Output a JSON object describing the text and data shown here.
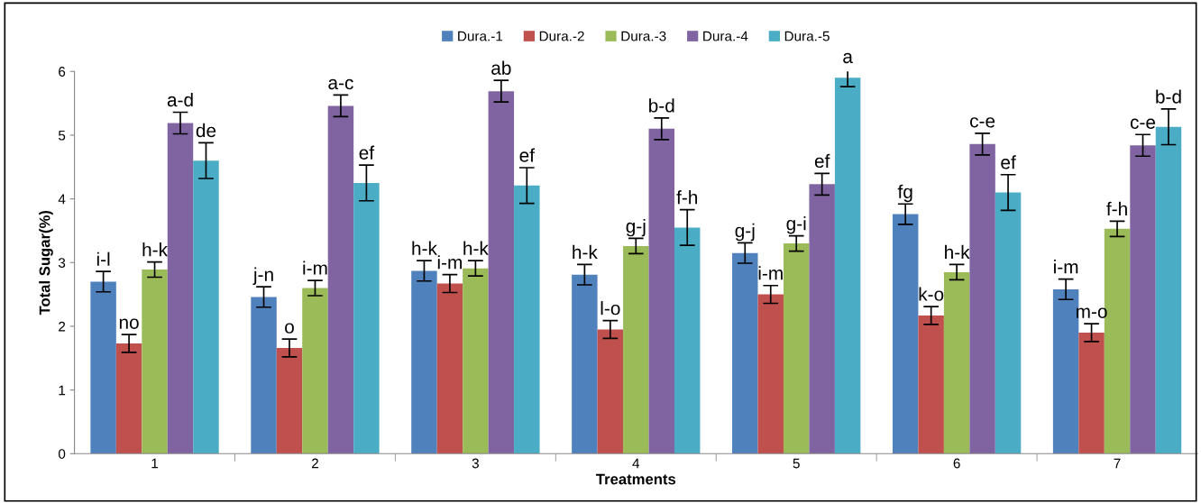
{
  "chart_data": {
    "type": "bar",
    "xlabel": "Treatments",
    "ylabel": "Total Sugar(%)",
    "categories": [
      "1",
      "2",
      "3",
      "4",
      "5",
      "6",
      "7"
    ],
    "ylim": [
      0,
      6
    ],
    "yticks": [
      0,
      1,
      2,
      3,
      4,
      5,
      6
    ],
    "grid": false,
    "legend": "top",
    "series": [
      {
        "name": "Dura.-1",
        "color": "#4f81bd",
        "values": [
          2.7,
          2.46,
          2.87,
          2.81,
          3.15,
          3.76,
          2.58
        ],
        "errors": [
          0.16,
          0.16,
          0.16,
          0.16,
          0.16,
          0.16,
          0.16
        ],
        "value_labels": [
          "i-l",
          "j-n",
          "h-k",
          "h-k",
          "g-j",
          "fg",
          "i-m"
        ]
      },
      {
        "name": "Dura.-2",
        "color": "#c0504d",
        "values": [
          1.73,
          1.66,
          2.67,
          1.95,
          2.5,
          2.17,
          1.9
        ],
        "errors": [
          0.14,
          0.14,
          0.14,
          0.14,
          0.14,
          0.14,
          0.14
        ],
        "value_labels": [
          "no",
          "o",
          "i-m",
          "l-o",
          "i-m",
          "k-o",
          "m-o"
        ]
      },
      {
        "name": "Dura.-3",
        "color": "#9bbb59",
        "values": [
          2.89,
          2.6,
          2.91,
          3.26,
          3.3,
          2.85,
          3.53
        ],
        "errors": [
          0.12,
          0.12,
          0.12,
          0.12,
          0.12,
          0.12,
          0.12
        ],
        "value_labels": [
          "h-k",
          "i-m",
          "h-k",
          "g-j",
          "g-i",
          "h-k",
          "f-h"
        ]
      },
      {
        "name": "Dura.-4",
        "color": "#8064a2",
        "values": [
          5.19,
          5.46,
          5.69,
          5.1,
          4.23,
          4.86,
          4.84
        ],
        "errors": [
          0.17,
          0.17,
          0.17,
          0.17,
          0.17,
          0.17,
          0.17
        ],
        "value_labels": [
          "a-d",
          "a-c",
          "ab",
          "b-d",
          "ef",
          "c-e",
          "c-e"
        ]
      },
      {
        "name": "Dura.-5",
        "color": "#4bacc6",
        "values": [
          4.6,
          4.25,
          4.21,
          3.55,
          5.9,
          4.1,
          5.13
        ],
        "errors": [
          0.28,
          0.28,
          0.28,
          0.28,
          0.14,
          0.28,
          0.28
        ],
        "value_labels": [
          "de",
          "ef",
          "ef",
          "f-h",
          "a",
          "ef",
          "b-d"
        ]
      }
    ]
  }
}
